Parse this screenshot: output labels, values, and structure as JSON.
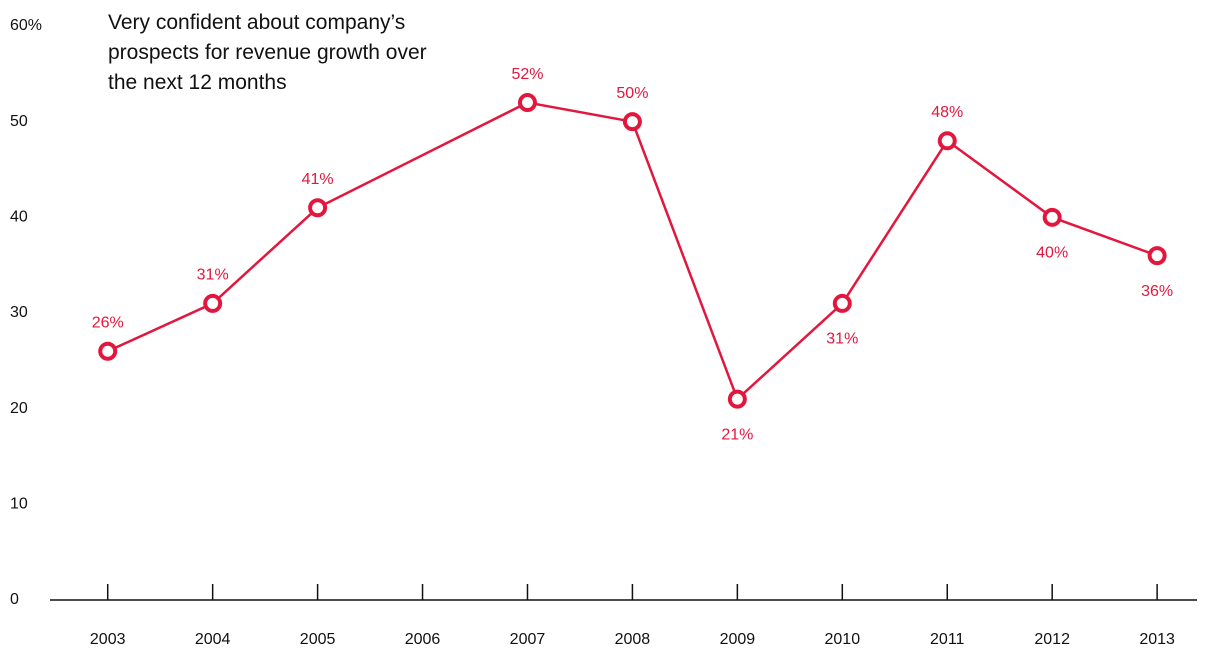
{
  "chart_data": {
    "type": "line",
    "title": "Very confident about company’s prospects for revenue growth over the next 12 months",
    "x": [
      2003,
      2004,
      2005,
      2007,
      2008,
      2009,
      2010,
      2011,
      2012,
      2013
    ],
    "series": [
      {
        "name": "Very confident",
        "color": "#e3173e",
        "values": [
          26,
          31,
          41,
          52,
          50,
          21,
          31,
          48,
          40,
          36
        ],
        "value_labels": [
          "26%",
          "31%",
          "41%",
          "52%",
          "50%",
          "21%",
          "31%",
          "48%",
          "40%",
          "36%"
        ]
      }
    ],
    "xlim": [
      2002.45,
      2013.38
    ],
    "xticks": [
      2003,
      2004,
      2005,
      2006,
      2007,
      2008,
      2009,
      2010,
      2011,
      2012,
      2013
    ],
    "ylim": [
      0,
      60
    ],
    "yticks": [
      0,
      10,
      20,
      30,
      40,
      50,
      {
        "value": 60,
        "label": "60%"
      }
    ]
  }
}
